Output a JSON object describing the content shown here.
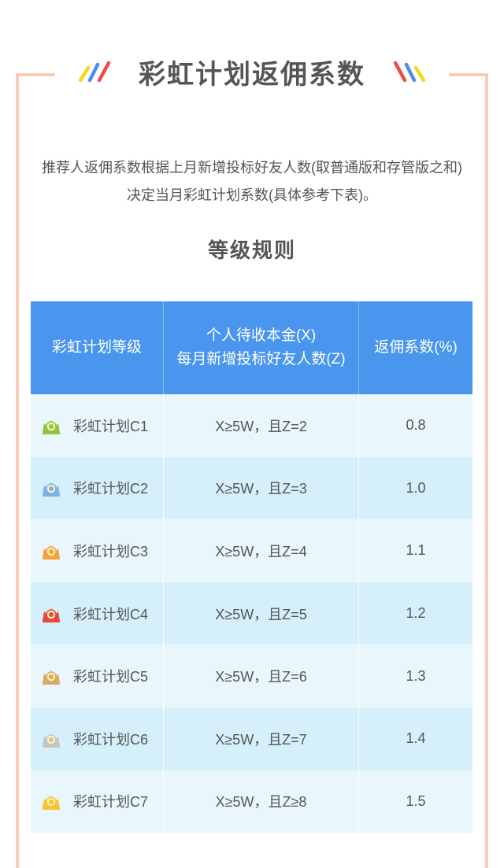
{
  "page": {
    "title": "彩虹计划返佣系数",
    "intro_line1": "推荐人返佣系数根据上月新增投标好友人数(取普通版和存管版之和)",
    "intro_line2": "决定当月彩虹计划系数(具体参考下表)。",
    "subtitle": "等级规则"
  },
  "colors": {
    "frame": "#f8cdb8",
    "header_bg": "#4a96ee",
    "row_light": "#e9f6fc",
    "row_dark": "#d6f0fb"
  },
  "table": {
    "headers": {
      "level": "彩虹计划等级",
      "condition_line1": "个人待收本金(X)",
      "condition_line2": "每月新增投标好友人数(Z)",
      "coefficient": "返佣系数(%)"
    },
    "rows": [
      {
        "level": "彩虹计划C1",
        "condition": "X≥5W，且Z=2",
        "coefficient": "0.8",
        "badge_icon": "green-crown-badge-icon",
        "badge_color": "#8cc63f"
      },
      {
        "level": "彩虹计划C2",
        "condition": "X≥5W，且Z=3",
        "coefficient": "1.0",
        "badge_icon": "blue-crown-badge-icon",
        "badge_color": "#7ab3e8"
      },
      {
        "level": "彩虹计划C3",
        "condition": "X≥5W，且Z=4",
        "coefficient": "1.1",
        "badge_icon": "orange-crown-badge-icon",
        "badge_color": "#f5a142"
      },
      {
        "level": "彩虹计划C4",
        "condition": "X≥5W，且Z=5",
        "coefficient": "1.2",
        "badge_icon": "red-crown-badge-icon",
        "badge_color": "#e9463f"
      },
      {
        "level": "彩虹计划C5",
        "condition": "X≥5W，且Z=6",
        "coefficient": "1.3",
        "badge_icon": "bronze-crown-badge-icon",
        "badge_color": "#d9a96a"
      },
      {
        "level": "彩虹计划C6",
        "condition": "X≥5W，且Z=7",
        "coefficient": "1.4",
        "badge_icon": "silver-crown-badge-icon",
        "badge_color": "#c4c4c4"
      },
      {
        "level": "彩虹计划C7",
        "condition": "X≥5W，且Z≥8",
        "coefficient": "1.5",
        "badge_icon": "gold-crown-badge-icon",
        "badge_color": "#f6c334"
      }
    ]
  }
}
